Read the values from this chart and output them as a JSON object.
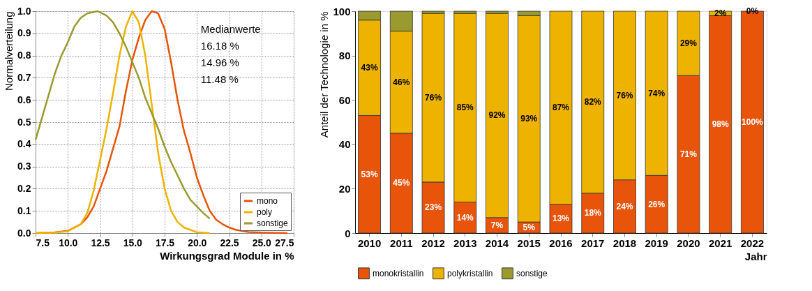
{
  "chart_data": [
    {
      "type": "line",
      "xlabel": "Wirkungsgrad Module in %",
      "ylabel": "Normalverteilung",
      "xlim": [
        7.5,
        27.5
      ],
      "ylim": [
        0,
        1.0
      ],
      "xticks": [
        {
          "value": 7.5,
          "label": "7.5"
        },
        {
          "value": 10,
          "label": "10.0"
        },
        {
          "value": 12.5,
          "label": "12.5"
        },
        {
          "value": 15,
          "label": "15.0"
        },
        {
          "value": 17.5,
          "label": "17.5"
        },
        {
          "value": 20,
          "label": "20.0"
        },
        {
          "value": 22.5,
          "label": "22.5"
        },
        {
          "value": 25,
          "label": "25.0"
        },
        {
          "value": 27.5,
          "label": "27.5"
        }
      ],
      "yticks": [
        {
          "value": 0,
          "label": "0.0"
        },
        0.1,
        0.2,
        0.3,
        0.4,
        0.5,
        0.6,
        0.7,
        0.8,
        0.9,
        {
          "value": 1.0,
          "label": "1.0"
        }
      ],
      "grid": true,
      "legend": "bottom right",
      "line_style": "solid",
      "marker": "none",
      "annotations": [
        "Medianwerte",
        "16.18 %",
        "14.96 %",
        "11.48 %"
      ],
      "series": [
        {
          "name": "mono",
          "color": "#e8540a",
          "x": [
            7.5,
            9,
            10,
            11,
            11.5,
            12,
            12.5,
            13,
            13.5,
            14,
            14.5,
            15,
            15.5,
            16,
            16.5,
            17,
            17.5,
            18,
            18.5,
            19,
            19.5,
            20,
            20.5,
            21,
            21.5,
            22,
            22.5,
            23,
            24,
            25,
            26,
            27
          ],
          "values": [
            0.0,
            0.003,
            0.01,
            0.04,
            0.07,
            0.12,
            0.2,
            0.28,
            0.38,
            0.48,
            0.64,
            0.78,
            0.88,
            0.96,
            1.0,
            0.99,
            0.92,
            0.77,
            0.6,
            0.46,
            0.36,
            0.25,
            0.17,
            0.1,
            0.06,
            0.04,
            0.025,
            0.015,
            0.005,
            0.002,
            0.001,
            0.0
          ]
        },
        {
          "name": "poly",
          "color": "#eeb300",
          "x": [
            7.5,
            9,
            10,
            11,
            11.5,
            12,
            12.5,
            13,
            13.5,
            14,
            14.5,
            15,
            15.5,
            16,
            16.5,
            17,
            17.5,
            18,
            18.5,
            19,
            20,
            21
          ],
          "values": [
            0.0,
            0.002,
            0.008,
            0.04,
            0.09,
            0.19,
            0.33,
            0.47,
            0.63,
            0.8,
            0.93,
            1.0,
            0.95,
            0.8,
            0.58,
            0.36,
            0.2,
            0.1,
            0.05,
            0.025,
            0.004,
            0.0
          ]
        },
        {
          "name": "sonstige",
          "color": "#9a9a2e",
          "x": [
            7.5,
            8,
            8.5,
            9,
            9.5,
            10,
            10.5,
            11,
            11.5,
            12.3,
            13,
            13.5,
            14,
            14.5,
            15,
            15.5,
            16,
            16.5,
            17,
            17.5,
            18,
            18.5,
            19,
            19.5,
            20,
            20.5,
            21
          ],
          "values": [
            0.42,
            0.52,
            0.62,
            0.72,
            0.8,
            0.86,
            0.93,
            0.97,
            0.99,
            1.0,
            0.98,
            0.95,
            0.9,
            0.84,
            0.77,
            0.7,
            0.61,
            0.54,
            0.47,
            0.39,
            0.32,
            0.26,
            0.2,
            0.15,
            0.12,
            0.09,
            0.065
          ]
        }
      ]
    },
    {
      "type": "bar",
      "stacked": true,
      "xlabel": "Jahr",
      "ylabel": "Anteil der Technologie in %",
      "ylim": [
        0,
        100
      ],
      "yticks": [
        0,
        20,
        40,
        60,
        80,
        100
      ],
      "grid": false,
      "legend": "bottom",
      "categories": [
        "2010",
        "2011",
        "2012",
        "2013",
        "2014",
        "2015",
        "2016",
        "2017",
        "2018",
        "2019",
        "2020",
        "2021",
        "2022"
      ],
      "series": [
        {
          "name": "monokristallin",
          "color": "#e8540a",
          "values": [
            53,
            45,
            23,
            14,
            7,
            5,
            13,
            18,
            24,
            26,
            71,
            98,
            100
          ],
          "value_labels": [
            "53%",
            "45%",
            "23%",
            "14%",
            "7%",
            "5%",
            "13%",
            "18%",
            "24%",
            "26%",
            "71%",
            "98%",
            "100%"
          ]
        },
        {
          "name": "polykristallin",
          "color": "#eeb300",
          "values": [
            43,
            46,
            76,
            85,
            92,
            93,
            87,
            82,
            76,
            74,
            29,
            2,
            0
          ],
          "value_labels": [
            "43%",
            "46%",
            "76%",
            "85%",
            "92%",
            "93%",
            "87%",
            "82%",
            "76%",
            "74%",
            "29%",
            "2%",
            "0%"
          ]
        },
        {
          "name": "sonstige",
          "color": "#9a9a2e",
          "values": [
            4,
            9,
            1,
            1,
            1,
            2,
            0,
            0,
            0,
            0,
            0,
            0,
            0
          ]
        }
      ]
    }
  ]
}
